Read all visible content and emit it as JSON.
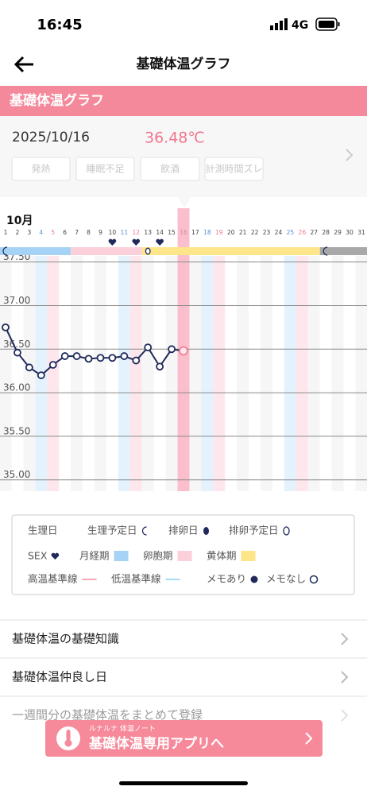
{
  "status": {
    "time": "16:45",
    "network": "4G"
  },
  "header": {
    "title": "基礎体温グラフ"
  },
  "section": {
    "title": "基礎体温グラフ"
  },
  "record": {
    "date": "2025/10/16",
    "temperature": "36.48℃",
    "tags": [
      "発熱",
      "睡眠不足",
      "飲酒",
      "計測時間ズレ"
    ]
  },
  "chart_data": {
    "type": "line",
    "month_label": "10月",
    "x": [
      1,
      2,
      3,
      4,
      5,
      6,
      7,
      8,
      9,
      10,
      11,
      12,
      13,
      14,
      15,
      16,
      17,
      18,
      19,
      20,
      21,
      22,
      23,
      24,
      25,
      26,
      27,
      28,
      29,
      30,
      31
    ],
    "series": [
      {
        "color": "#1f2a5a",
        "values": [
          36.75,
          36.46,
          36.29,
          36.2,
          36.32,
          36.42,
          36.42,
          36.39,
          36.4,
          36.4,
          36.42,
          36.37,
          36.52,
          36.3,
          36.5,
          36.48,
          null,
          null,
          null,
          null,
          null,
          null,
          null,
          null,
          null,
          null,
          null,
          null,
          null,
          null,
          null
        ]
      }
    ],
    "xlim": [
      0.53,
      31.47
    ],
    "ylim": [
      34.87,
      37.57
    ],
    "yticks": [
      {
        "value": 35,
        "label": "35.00"
      },
      {
        "value": 35.5,
        "label": "35.50"
      },
      {
        "value": 36,
        "label": "36.00"
      },
      {
        "value": 36.5,
        "label": "36.50"
      },
      {
        "value": 37,
        "label": "37.00"
      },
      {
        "value": 37.5,
        "label": "37.50"
      }
    ],
    "saturdays": [
      4,
      11,
      18,
      25
    ],
    "sundays": [
      5,
      12,
      19,
      26
    ],
    "selected_day": 16,
    "phases": [
      {
        "start": 1,
        "end": 6,
        "color": "#a6d3f5"
      },
      {
        "start": 7,
        "end": 12,
        "color": "#fbd0da"
      },
      {
        "start": 13,
        "end": 27,
        "color": "#fde68a"
      },
      {
        "start": 28,
        "end": 31,
        "color": "#a8a8a8"
      }
    ],
    "period_days": [
      1,
      28
    ],
    "ovulation_predicted_days": [
      13
    ],
    "sex_days": [
      10,
      12,
      14
    ]
  },
  "legend": [
    "生理日",
    "生理予定日",
    "排卵日",
    "排卵予定日",
    "SEX",
    "月経期",
    "卵胞期",
    "黄体期",
    "高温基準線",
    "低温基準線",
    "メモあり",
    "メモなし"
  ],
  "links": [
    "基礎体温の基礎知識",
    "基礎体温仲良し日",
    "一週間分の基礎体温をまとめて登録"
  ],
  "button": {
    "caption": "ルナルナ 体温ノート",
    "label": "基礎体温専用アプリへ"
  }
}
